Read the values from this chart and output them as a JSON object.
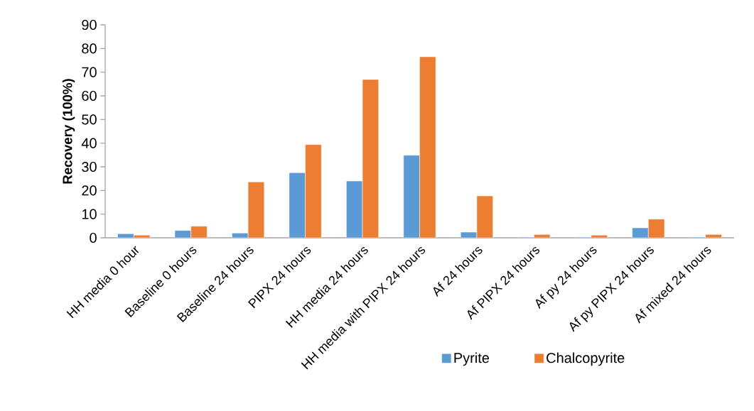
{
  "chart_data": {
    "type": "bar",
    "ylabel": "Recovery (100%)",
    "categories": [
      "HH media 0 hour",
      "Baseline 0 hours",
      "Baseline 24 hours",
      "PIPX 24 hours",
      "HH media 24 hours",
      "HH media with PIPX 24 hours",
      "Af 24 hours",
      "Af PIPX 24 hours",
      "Af py 24 hours",
      "Af py PIPX 24 hours",
      "Af mixed 24 hours"
    ],
    "series": [
      {
        "name": "Pyrite",
        "color": "#5b9bd5",
        "values": [
          1.7,
          3.1,
          2.0,
          27.5,
          24.0,
          34.9,
          2.4,
          0.3,
          0.3,
          4.2,
          0.3
        ]
      },
      {
        "name": "Chalcopyrite",
        "color": "#ed7d31",
        "values": [
          1.1,
          4.9,
          23.6,
          39.4,
          66.9,
          76.5,
          17.7,
          1.4,
          1.1,
          7.9,
          1.4
        ]
      }
    ],
    "ylim": [
      0,
      90
    ],
    "yticks": [
      0,
      10,
      20,
      30,
      40,
      50,
      60,
      70,
      80,
      90
    ],
    "legend": "bottom right"
  }
}
